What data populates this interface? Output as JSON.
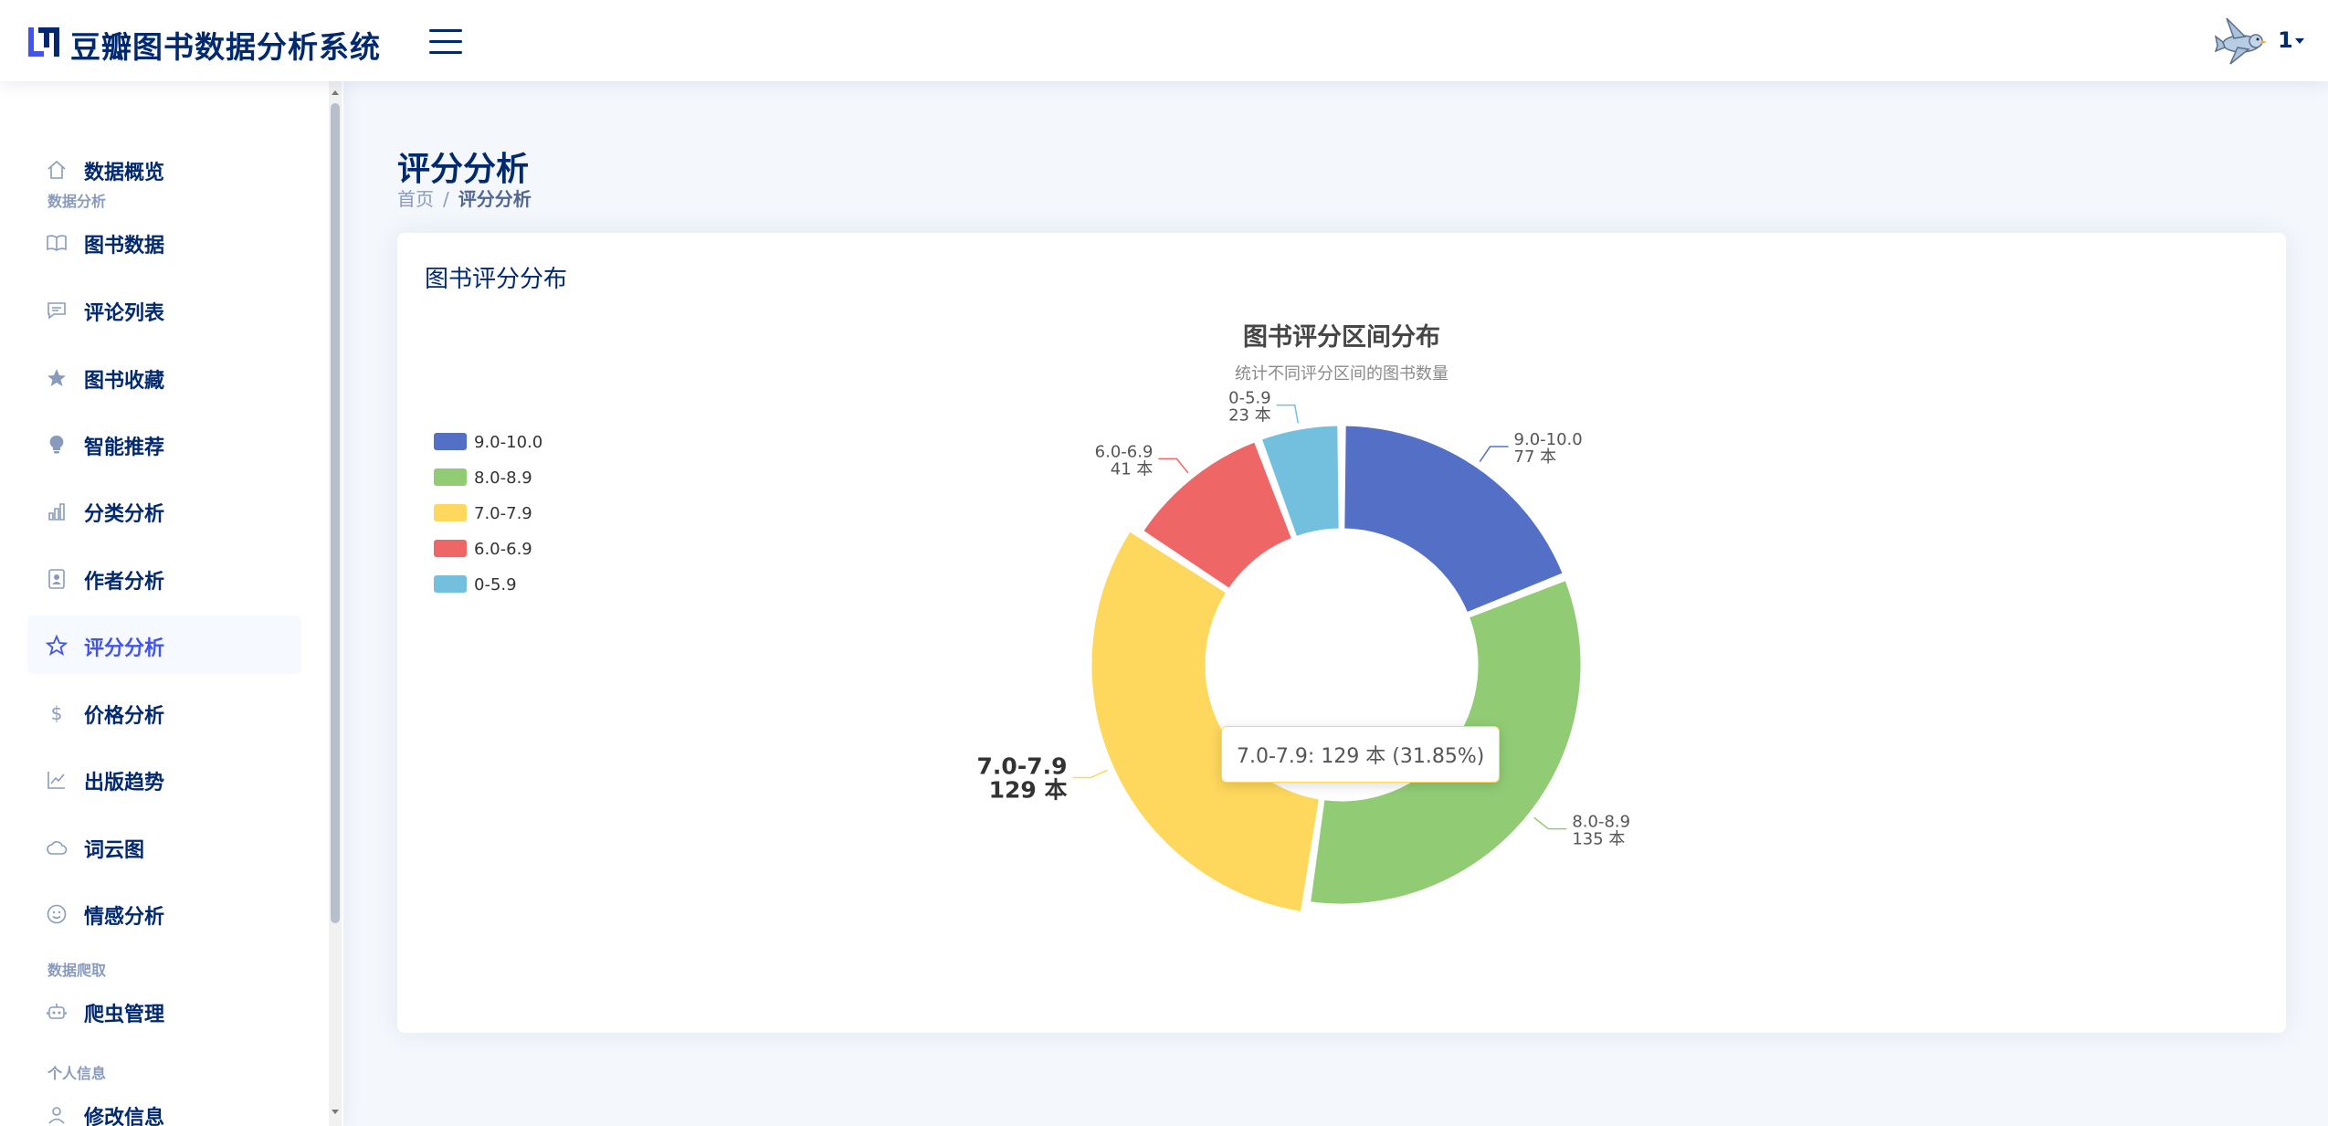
{
  "header": {
    "app_title": "豆瓣图书数据分析系统",
    "user_name": "1",
    "logo_icon": "logo-icon",
    "menu_icon": "hamburger-icon",
    "avatar_icon": "bird-avatar-icon"
  },
  "sidebar": {
    "items": [
      {
        "type": "item",
        "label": "数据概览",
        "icon": "home-icon"
      },
      {
        "type": "heading",
        "label": "数据分析"
      },
      {
        "type": "item",
        "label": "图书数据",
        "icon": "book-icon"
      },
      {
        "type": "item",
        "label": "评论列表",
        "icon": "comment-icon"
      },
      {
        "type": "item",
        "label": "图书收藏",
        "icon": "star-icon"
      },
      {
        "type": "item",
        "label": "智能推荐",
        "icon": "lightbulb-icon"
      },
      {
        "type": "item",
        "label": "分类分析",
        "icon": "bar-chart-icon"
      },
      {
        "type": "item",
        "label": "作者分析",
        "icon": "person-badge-icon"
      },
      {
        "type": "item",
        "label": "评分分析",
        "icon": "star-outline-icon",
        "active": true
      },
      {
        "type": "item",
        "label": "价格分析",
        "icon": "dollar-icon"
      },
      {
        "type": "item",
        "label": "出版趋势",
        "icon": "line-chart-icon"
      },
      {
        "type": "item",
        "label": "词云图",
        "icon": "cloud-icon"
      },
      {
        "type": "item",
        "label": "情感分析",
        "icon": "smile-icon"
      },
      {
        "type": "heading",
        "label": "数据爬取"
      },
      {
        "type": "item",
        "label": "爬虫管理",
        "icon": "robot-icon"
      },
      {
        "type": "heading",
        "label": "个人信息"
      },
      {
        "type": "item",
        "label": "修改信息",
        "icon": "person-icon"
      }
    ]
  },
  "main": {
    "page_title": "评分分析",
    "breadcrumb": {
      "home": "首页",
      "separator": "/",
      "current": "评分分析"
    },
    "card_title": "图书评分分布"
  },
  "chart_data": {
    "type": "pie",
    "variant": "donut",
    "title": "图书评分区间分布",
    "subtitle": "统计不同评分区间的图书数量",
    "unit": "本",
    "legend_position": "left",
    "slices": [
      {
        "name": "9.0-10.0",
        "value": 77,
        "color": "#5470c6"
      },
      {
        "name": "8.0-8.9",
        "value": 135,
        "color": "#91cc75"
      },
      {
        "name": "7.0-7.9",
        "value": 129,
        "color": "#fdd85d"
      },
      {
        "name": "6.0-6.9",
        "value": 41,
        "color": "#ee6666"
      },
      {
        "name": "0-5.9",
        "value": 23,
        "color": "#73c0de"
      }
    ],
    "highlighted": "7.0-7.9",
    "tooltip": "7.0-7.9: 129 本 (31.85%)"
  }
}
